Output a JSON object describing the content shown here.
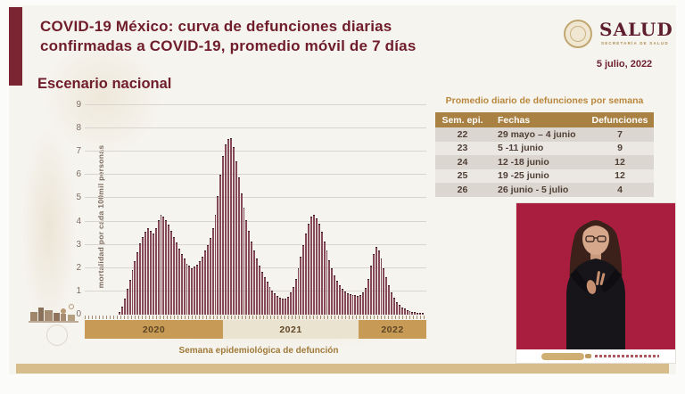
{
  "header": {
    "title_line1": "COVID-19 México: curva de defunciones diarias",
    "title_line2": "confirmadas a COVID-19, promedio móvil de 7 días",
    "logo_text": "SALUD",
    "logo_subtext": "SECRETARÍA DE SALUD",
    "date": "5 julio, 2022"
  },
  "section_title": "Escenario nacional",
  "chart_data": {
    "type": "bar",
    "title": "Curva de defunciones diarias confirmadas a COVID-19, promedio móvil de 7 días (escenario nacional)",
    "ylabel": "mortalidad por cada 100mil personas",
    "xlabel": "Semana epidemiológica de defunción",
    "ylim": [
      0,
      9
    ],
    "yticks": [
      0,
      1,
      2,
      3,
      4,
      5,
      6,
      7,
      8,
      9
    ],
    "grid": true,
    "legend": "none",
    "x_unit": "semana epidemiológica",
    "year_bands": [
      {
        "label": "2020",
        "weeks": 40
      },
      {
        "label": "2021",
        "weeks": 53
      },
      {
        "label": "2022",
        "weeks": 25
      }
    ],
    "values": [
      0.1,
      0.35,
      0.7,
      1.1,
      1.5,
      1.9,
      2.3,
      2.7,
      3.05,
      3.35,
      3.55,
      3.7,
      3.6,
      3.5,
      3.7,
      4.05,
      4.3,
      4.2,
      4.05,
      3.85,
      3.6,
      3.35,
      3.1,
      2.85,
      2.6,
      2.4,
      2.2,
      2.1,
      2.0,
      2.05,
      2.15,
      2.3,
      2.5,
      2.75,
      3.0,
      3.3,
      3.7,
      4.3,
      5.1,
      6.0,
      6.8,
      7.3,
      7.55,
      7.6,
      7.2,
      6.6,
      5.9,
      5.2,
      4.6,
      4.05,
      3.6,
      3.15,
      2.75,
      2.4,
      2.1,
      1.85,
      1.6,
      1.4,
      1.2,
      1.05,
      0.92,
      0.8,
      0.72,
      0.68,
      0.7,
      0.78,
      0.95,
      1.2,
      1.55,
      2.0,
      2.5,
      3.0,
      3.5,
      3.9,
      4.2,
      4.3,
      4.15,
      3.9,
      3.55,
      3.15,
      2.75,
      2.35,
      2.0,
      1.7,
      1.45,
      1.25,
      1.1,
      1.0,
      0.93,
      0.88,
      0.85,
      0.83,
      0.82,
      0.85,
      0.95,
      1.15,
      1.55,
      2.1,
      2.6,
      2.9,
      2.75,
      2.4,
      2.0,
      1.6,
      1.25,
      0.95,
      0.72,
      0.55,
      0.42,
      0.32,
      0.25,
      0.2,
      0.16,
      0.13,
      0.1,
      0.08,
      0.07,
      0.06
    ]
  },
  "table": {
    "title": "Promedio diario de defunciones por semana",
    "columns": [
      "Sem. epi.",
      "Fechas",
      "Defunciones"
    ],
    "rows": [
      [
        "22",
        "29 mayo – 4 junio",
        "7"
      ],
      [
        "23",
        "5 -11 junio",
        "9"
      ],
      [
        "24",
        "12 -18 junio",
        "12"
      ],
      [
        "25",
        "19 -25 junio",
        "12"
      ],
      [
        "26",
        "26 junio - 5 julio",
        "4"
      ]
    ]
  },
  "colors": {
    "maroon_text": "#701d2b",
    "sidebar_maroon": "#7b2532",
    "bar_fill": "#86495a",
    "band_tan": "#c79b56",
    "band_cream": "#eae3cf",
    "table_header_gold": "#a98142",
    "table_title_gold": "#b8873c",
    "video_background_crimson": "#a91d3e",
    "bottom_strip_tan": "#d7bd8c"
  }
}
